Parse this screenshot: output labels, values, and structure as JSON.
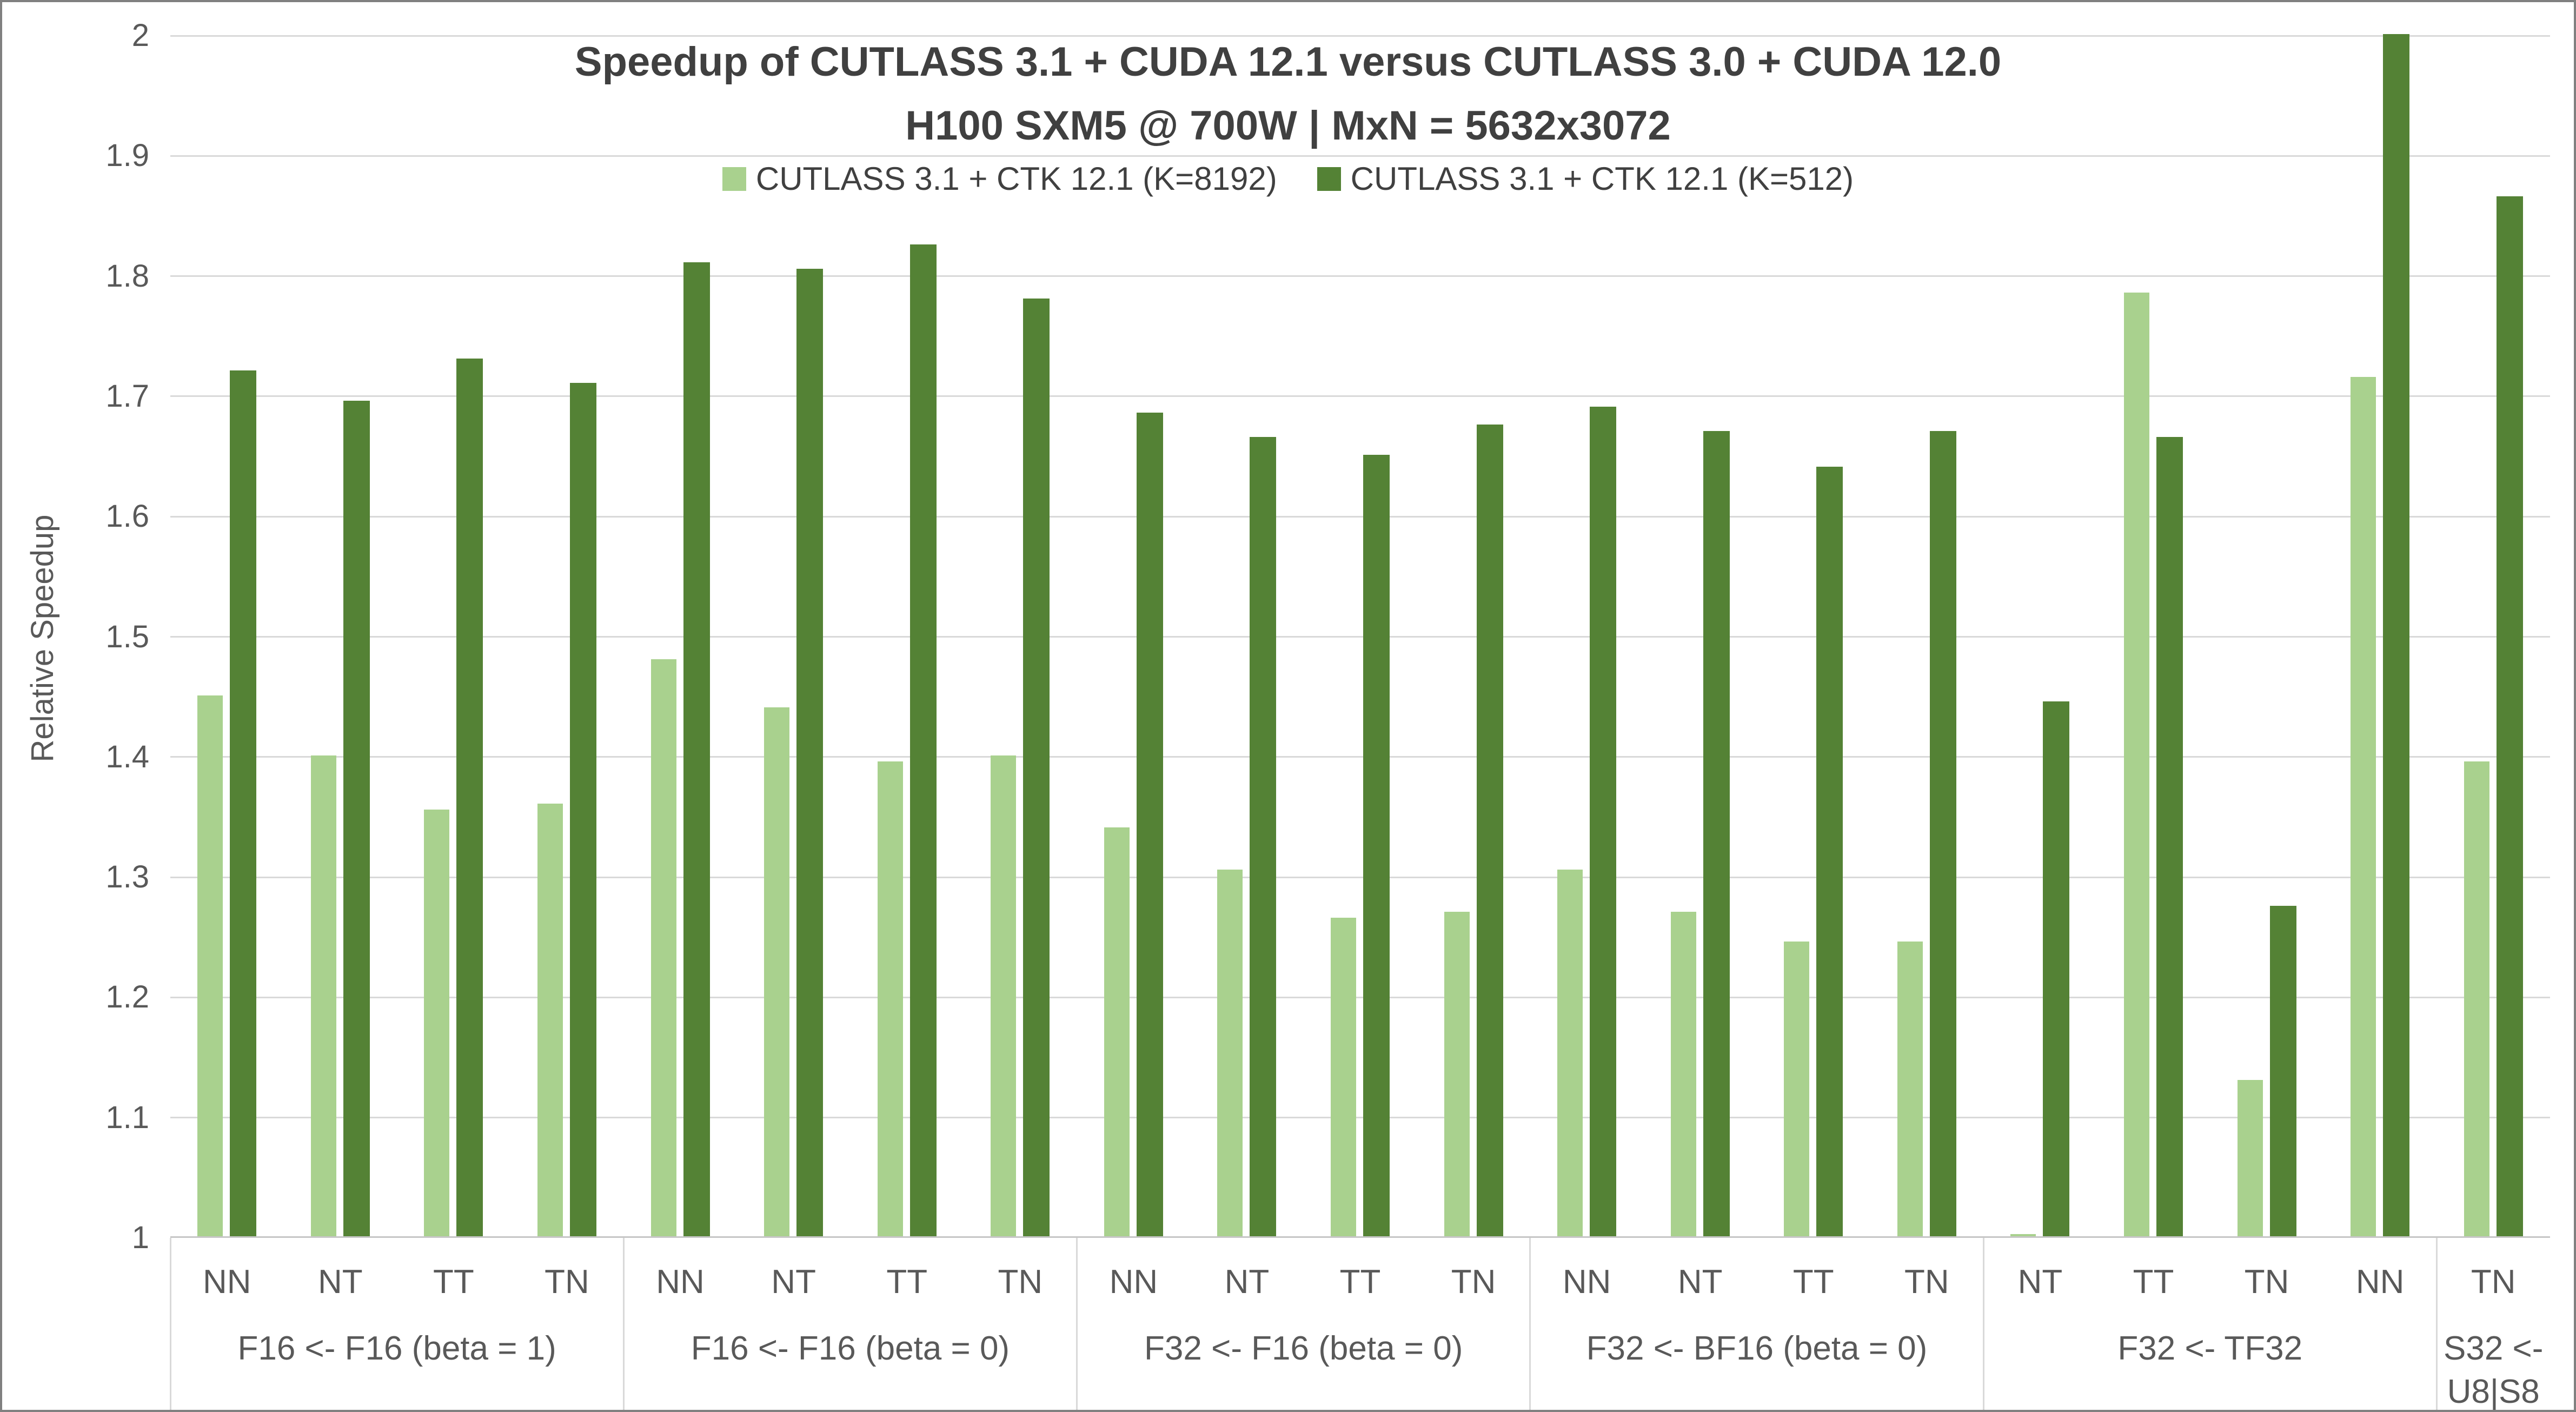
{
  "chart_data": {
    "type": "bar",
    "title": "Speedup of CUTLASS 3.1 + CUDA 12.1 versus CUTLASS 3.0 + CUDA 12.0",
    "subtitle": "H100 SXM5 @ 700W | MxN = 5632x3072",
    "ylabel": "Relative Speedup",
    "ylim": [
      1,
      2
    ],
    "yticks": [
      2,
      1.9,
      1.8,
      1.7,
      1.6,
      1.5,
      1.4,
      1.3,
      1.2,
      1.1,
      1
    ],
    "ytick_labels": [
      "2",
      "1.9",
      "1.8",
      "1.7",
      "1.6",
      "1.5",
      "1.4",
      "1.3",
      "1.2",
      "1.1",
      "1"
    ],
    "grid": true,
    "legend_position": "top-center",
    "series": [
      {
        "name": "CUTLASS 3.1 + CTK 12.1 (K=8192)",
        "key": "k8192",
        "color": "#A9D18E"
      },
      {
        "name": "CUTLASS 3.1 + CTK 12.1 (K=512)",
        "key": "k512",
        "color": "#548235"
      }
    ],
    "groups": [
      {
        "label": "F16 <- F16 (beta = 1)",
        "categories": [
          "NN",
          "NT",
          "TT",
          "TN"
        ],
        "k8192": [
          1.45,
          1.4,
          1.355,
          1.36
        ],
        "k512": [
          1.72,
          1.695,
          1.73,
          1.71
        ]
      },
      {
        "label": "F16 <- F16 (beta = 0)",
        "categories": [
          "NN",
          "NT",
          "TT",
          "TN"
        ],
        "k8192": [
          1.48,
          1.44,
          1.395,
          1.4
        ],
        "k512": [
          1.81,
          1.805,
          1.825,
          1.78
        ]
      },
      {
        "label": "F32 <- F16 (beta = 0)",
        "categories": [
          "NN",
          "NT",
          "TT",
          "TN"
        ],
        "k8192": [
          1.34,
          1.305,
          1.265,
          1.27
        ],
        "k512": [
          1.685,
          1.665,
          1.65,
          1.675
        ]
      },
      {
        "label": "F32 <- BF16 (beta = 0)",
        "categories": [
          "NN",
          "NT",
          "TT",
          "TN"
        ],
        "k8192": [
          1.305,
          1.27,
          1.245,
          1.245
        ],
        "k512": [
          1.69,
          1.67,
          1.64,
          1.67
        ]
      },
      {
        "label": "F32 <- TF32",
        "categories": [
          "NT",
          "TT",
          "TN",
          "NN"
        ],
        "k8192": [
          1.002,
          1.785,
          1.13,
          1.715
        ],
        "k512": [
          1.445,
          1.665,
          1.275,
          2.0
        ]
      },
      {
        "label": "S32 <- U8|S8",
        "categories": [
          "TN"
        ],
        "k8192": [
          1.395
        ],
        "k512": [
          1.865
        ]
      }
    ],
    "colors": {
      "gridline": "#D9D9D9",
      "axis_line": "#C6C6C6",
      "tick_text": "#595959",
      "title_text": "#404040",
      "frame": "#808080",
      "background": "#FFFFFF"
    }
  }
}
